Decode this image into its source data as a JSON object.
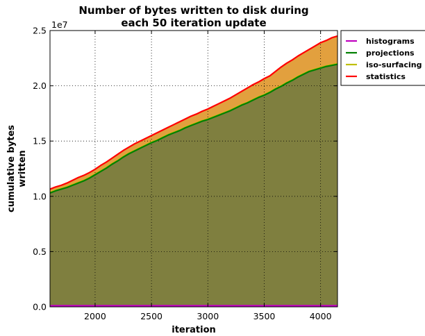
{
  "chart_data": {
    "type": "area",
    "title": "Number of bytes written to disk during each 50 iteration update",
    "title_lines": [
      "Number of bytes written to disk during",
      "each 50 iteration update"
    ],
    "xlabel": "iteration",
    "ylabel": "cumulative bytes written",
    "ylabel_lines": [
      "cumulative bytes",
      "written"
    ],
    "y_exponent_label": "1e7",
    "xlim": [
      1600,
      4150
    ],
    "ylim": [
      0,
      25000000
    ],
    "x_ticks": [
      2000,
      2500,
      3000,
      3500,
      4000
    ],
    "x_tick_labels": [
      "2000",
      "2500",
      "3000",
      "3500",
      "4000"
    ],
    "y_ticks": [
      0,
      5000000,
      10000000,
      15000000,
      20000000,
      25000000
    ],
    "y_tick_labels": [
      "0.0",
      "0.5",
      "1.0",
      "1.5",
      "2.0",
      "2.5"
    ],
    "grid": true,
    "stacked": true,
    "legend_position": "outside-top-right",
    "x": [
      1600,
      1650,
      1700,
      1750,
      1800,
      1850,
      1900,
      1950,
      2000,
      2050,
      2100,
      2150,
      2200,
      2250,
      2300,
      2350,
      2400,
      2450,
      2500,
      2550,
      2600,
      2650,
      2700,
      2750,
      2800,
      2850,
      2900,
      2950,
      3000,
      3050,
      3100,
      3150,
      3200,
      3250,
      3300,
      3350,
      3400,
      3450,
      3500,
      3550,
      3600,
      3650,
      3700,
      3750,
      3800,
      3850,
      3900,
      3950,
      4000,
      4050,
      4100,
      4150
    ],
    "series": [
      {
        "name": "histograms",
        "color": "#bf00bf",
        "values": [
          100000,
          100000,
          100000,
          100000,
          100000,
          100000,
          100000,
          100000,
          100000,
          100000,
          100000,
          100000,
          100000,
          100000,
          100000,
          100000,
          100000,
          100000,
          100000,
          100000,
          100000,
          100000,
          100000,
          100000,
          100000,
          100000,
          100000,
          100000,
          100000,
          100000,
          100000,
          100000,
          100000,
          100000,
          100000,
          100000,
          100000,
          100000,
          100000,
          100000,
          100000,
          100000,
          100000,
          100000,
          100000,
          100000,
          100000,
          100000,
          100000,
          100000,
          100000,
          100000
        ]
      },
      {
        "name": "projections",
        "color": "#008000",
        "values": [
          10300000,
          10500000,
          10650000,
          10800000,
          11000000,
          11200000,
          11400000,
          11650000,
          11950000,
          12250000,
          12550000,
          12900000,
          13200000,
          13550000,
          13850000,
          14100000,
          14350000,
          14600000,
          14850000,
          15050000,
          15300000,
          15550000,
          15750000,
          15950000,
          16200000,
          16400000,
          16600000,
          16800000,
          16950000,
          17150000,
          17350000,
          17550000,
          17750000,
          18000000,
          18250000,
          18450000,
          18700000,
          18950000,
          19150000,
          19400000,
          19700000,
          19950000,
          20250000,
          20500000,
          20800000,
          21050000,
          21300000,
          21450000,
          21600000,
          21750000,
          21850000,
          21950000
        ]
      },
      {
        "name": "iso-surfacing",
        "color": "#bfbf00",
        "values": [
          10350000,
          10550000,
          10700000,
          10850000,
          11050000,
          11250000,
          11450000,
          11700000,
          12000000,
          12300000,
          12600000,
          12950000,
          13250000,
          13600000,
          13900000,
          14150000,
          14400000,
          14650000,
          14900000,
          15100000,
          15350000,
          15600000,
          15800000,
          16000000,
          16250000,
          16450000,
          16650000,
          16850000,
          17000000,
          17200000,
          17400000,
          17600000,
          17800000,
          18050000,
          18300000,
          18500000,
          18750000,
          19000000,
          19200000,
          19450000,
          19750000,
          20000000,
          20300000,
          20550000,
          20850000,
          21100000,
          21350000,
          21500000,
          21650000,
          21800000,
          21900000,
          22000000
        ]
      },
      {
        "name": "statistics",
        "color": "#ff0000",
        "values": [
          10650000,
          10850000,
          11000000,
          11200000,
          11450000,
          11700000,
          11900000,
          12150000,
          12450000,
          12800000,
          13100000,
          13450000,
          13800000,
          14150000,
          14450000,
          14750000,
          15000000,
          15250000,
          15500000,
          15750000,
          16000000,
          16250000,
          16500000,
          16750000,
          17000000,
          17250000,
          17450000,
          17700000,
          17900000,
          18150000,
          18400000,
          18650000,
          18900000,
          19200000,
          19500000,
          19800000,
          20100000,
          20350000,
          20650000,
          20900000,
          21300000,
          21700000,
          22050000,
          22350000,
          22700000,
          23000000,
          23300000,
          23600000,
          23900000,
          24100000,
          24350000,
          24500000
        ]
      }
    ],
    "colors": {
      "fill_bottom": "#7f7f3f",
      "fill_top": "#e2a03e",
      "grid": "#000000"
    }
  }
}
